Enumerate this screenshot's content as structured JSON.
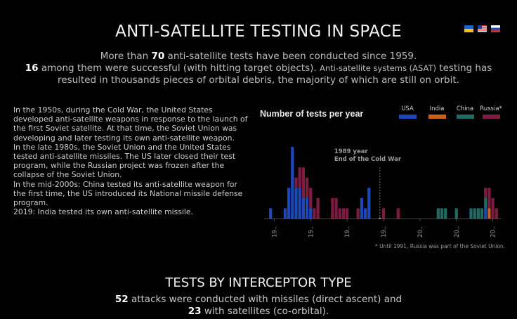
{
  "title": "ANTI-SATELLITE TESTING IN SPACE",
  "flags": [
    {
      "name": "ukraine-flag-icon"
    },
    {
      "name": "usa-flag-icon"
    },
    {
      "name": "russia-flag-icon"
    }
  ],
  "intro": {
    "line1_a": "More than ",
    "line1_num": "70",
    "line1_b": " anti-satellite tests have been conducted since 1959.",
    "line2_num": "16",
    "line2_a": " among them were successful (with hitting target objects). ",
    "line2_small": "Anti-satellite systems (ASAT)",
    "line2_b": " testing has",
    "line3": "resulted in thousands pieces of orbital debris, the majority of which are still on orbit."
  },
  "story": [
    "In the 1950s, during the Cold War, the United States developed anti-satellite weapons in response to the launch of the first Soviet satellite. At that time, the Soviet Union was developing and later testing its own anti-satellite weapon.",
    "In the late 1980s, the Soviet Union and the United States tested anti-satellite missiles. The US later closed their test program, while the Russian project was frozen after the collapse of the Soviet Union.",
    "In the mid-2000s: China tested its anti-satellite weapon for the first time, the US introduced its National missile defense program.",
    "2019: India tested its own anti-satellite missile."
  ],
  "chart_data": {
    "type": "bar",
    "title": "Number of tests per year",
    "legend": [
      "USA",
      "India",
      "China",
      "Russia*"
    ],
    "colors": {
      "USA": "#1c49b8",
      "India": "#c8621a",
      "China": "#1f6b63",
      "Russia*": "#7d1b43"
    },
    "x_tick_labels": [
      "19..",
      "19..",
      "19..",
      "19..",
      "20..",
      "20..",
      "20.."
    ],
    "annotation": {
      "line1": "1989 year",
      "line2": "End of the Cold War"
    },
    "footnote": "* Until 1991, Russia was part of the Soviet Union.",
    "x": [
      1959,
      1960,
      1962,
      1963,
      1964,
      1965,
      1966,
      1967,
      1968,
      1969,
      1970,
      1971,
      1972,
      1976,
      1977,
      1978,
      1979,
      1980,
      1982,
      1983,
      1984,
      1985,
      1986,
      1988,
      1990,
      1994,
      2005,
      2006,
      2007,
      2010,
      2013,
      2014,
      2015,
      2016,
      2017,
      2018,
      2019,
      2020,
      2021
    ],
    "series": [
      {
        "name": "USA",
        "values": [
          1,
          0,
          0,
          1,
          3,
          7,
          3,
          3,
          2,
          2,
          1,
          0,
          0,
          0,
          0,
          0,
          0,
          0,
          0,
          0,
          2,
          1,
          3,
          0,
          0,
          0,
          0,
          0,
          0,
          0,
          0,
          0,
          0,
          0,
          0,
          1,
          0,
          0,
          0
        ]
      },
      {
        "name": "India",
        "values": [
          0,
          0,
          0,
          0,
          0,
          0,
          0,
          0,
          0,
          0,
          0,
          0,
          0,
          0,
          0,
          0,
          0,
          0,
          0,
          0,
          0,
          0,
          0,
          0,
          0,
          0,
          0,
          0,
          0,
          0,
          0,
          0,
          0,
          0,
          0,
          0,
          1,
          0,
          0
        ]
      },
      {
        "name": "China",
        "values": [
          0,
          0,
          0,
          0,
          0,
          0,
          0,
          0,
          0,
          0,
          0,
          0,
          0,
          0,
          0,
          0,
          0,
          0,
          0,
          0,
          0,
          0,
          0,
          0,
          0,
          0,
          1,
          1,
          1,
          1,
          0,
          1,
          1,
          1,
          1,
          1,
          0,
          0,
          0
        ]
      },
      {
        "name": "Russia*",
        "values": [
          0,
          0,
          0,
          0,
          0,
          0,
          1,
          2,
          3,
          2,
          2,
          1,
          2,
          2,
          2,
          1,
          1,
          1,
          0,
          1,
          0,
          0,
          0,
          0,
          1,
          1,
          0,
          0,
          0,
          0,
          0,
          0,
          0,
          0,
          0,
          1,
          2,
          2,
          1
        ]
      }
    ],
    "ylim": [
      0,
      9
    ]
  },
  "section": {
    "title": "TESTS BY INTERCEPTOR TYPE",
    "line1_num": "52",
    "line1_text": " attacks were conducted with missiles (direct ascent) and",
    "line2_num": "23",
    "line2_text": " with satellites (co-orbital)."
  }
}
